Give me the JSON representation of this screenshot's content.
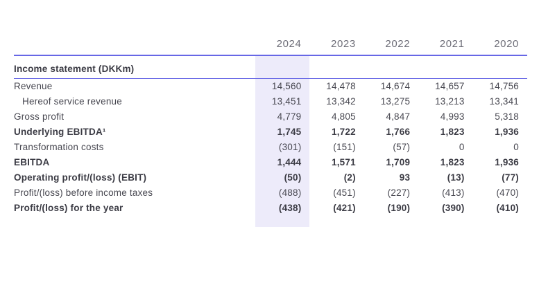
{
  "table": {
    "section_title": "Income statement (DKKm)",
    "years": [
      "2024",
      "2023",
      "2022",
      "2021",
      "2020"
    ],
    "highlight_year": "2024",
    "rows": [
      {
        "label": "Revenue",
        "bold": false,
        "indent": false,
        "values": [
          "14,560",
          "14,478",
          "14,674",
          "14,657",
          "14,756"
        ]
      },
      {
        "label": "Hereof service revenue",
        "bold": false,
        "indent": true,
        "values": [
          "13,451",
          "13,342",
          "13,275",
          "13,213",
          "13,341"
        ]
      },
      {
        "label": "Gross profit",
        "bold": false,
        "indent": false,
        "values": [
          "4,779",
          "4,805",
          "4,847",
          "4,993",
          "5,318"
        ]
      },
      {
        "label": "Underlying EBITDA¹",
        "bold": true,
        "indent": false,
        "values": [
          "1,745",
          "1,722",
          "1,766",
          "1,823",
          "1,936"
        ]
      },
      {
        "label": "Transformation costs",
        "bold": false,
        "indent": false,
        "values": [
          "(301)",
          "(151)",
          "(57)",
          "0",
          "0"
        ]
      },
      {
        "label": "EBITDA",
        "bold": true,
        "indent": false,
        "values": [
          "1,444",
          "1,571",
          "1,709",
          "1,823",
          "1,936"
        ]
      },
      {
        "label": "Operating profit/(loss) (EBIT)",
        "bold": true,
        "indent": false,
        "values": [
          "(50)",
          "(2)",
          "93",
          "(13)",
          "(77)"
        ]
      },
      {
        "label": "Profit/(loss) before income taxes",
        "bold": false,
        "indent": false,
        "values": [
          "(488)",
          "(451)",
          "(227)",
          "(413)",
          "(470)"
        ]
      },
      {
        "label": "Profit/(loss) for the year",
        "bold": true,
        "indent": false,
        "values": [
          "(438)",
          "(421)",
          "(190)",
          "(390)",
          "(410)"
        ]
      }
    ],
    "colors": {
      "rule": "#6767e6",
      "highlight": "#edebfa",
      "text": "#474750",
      "bold_text": "#3b3b44",
      "year_text": "#6e6e78"
    }
  }
}
